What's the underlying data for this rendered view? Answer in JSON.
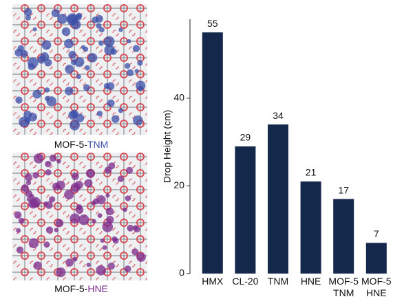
{
  "panels": [
    {
      "prefix": "MOF-5-",
      "highlight": "TNM",
      "color": "#3b4fa8"
    },
    {
      "prefix": "MOF-5-",
      "highlight": "HNE",
      "color": "#7a2a8c"
    }
  ],
  "chart_data": {
    "type": "bar",
    "ylabel": "Drop Height (cm)",
    "categories": [
      "HMX",
      "CL-20",
      "TNM",
      "HNE",
      "MOF-5\nTNM",
      "MOF-5\nHNE"
    ],
    "values": [
      55,
      29,
      34,
      21,
      17,
      7
    ],
    "color": "#14284b",
    "ylim": [
      0,
      58
    ],
    "yticks": [
      0,
      20,
      40
    ]
  }
}
